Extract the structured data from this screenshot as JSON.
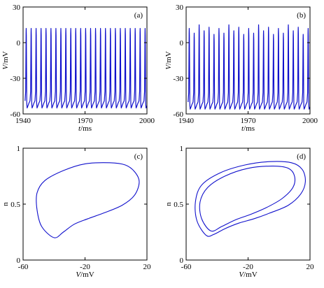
{
  "figure": {
    "line_color": "#1010cc",
    "axis_color": "#000000"
  },
  "chart_data": [
    {
      "panel_label": "(a)",
      "type": "line",
      "xlabel": "t/ms",
      "ylabel": "V/mV",
      "xlim": [
        1940,
        2000
      ],
      "ylim": [
        -60,
        30
      ],
      "xticks": [
        1940,
        1970,
        2000
      ],
      "yticks": [
        -60,
        -30,
        0,
        30
      ],
      "xtick_labels": [
        "1940",
        "1970",
        "2000"
      ],
      "ytick_labels": [
        "-60",
        "-30",
        "0",
        "30"
      ],
      "grid": false,
      "series": [
        {
          "spike_peak_mV": 12,
          "trough_mV": -55,
          "spike_count": 25,
          "first_spike_ms": 1941.5,
          "spike_period_ms": 2.4,
          "peak_pattern": [
            12
          ]
        }
      ]
    },
    {
      "panel_label": "(b)",
      "type": "line",
      "xlabel": "t/ms",
      "ylabel": "V/mV",
      "xlim": [
        1940,
        2000
      ],
      "ylim": [
        -60,
        30
      ],
      "xticks": [
        1940,
        1970,
        2000
      ],
      "yticks": [
        -60,
        -30,
        0,
        30
      ],
      "xtick_labels": [
        "1940",
        "1970",
        "2000"
      ],
      "ytick_labels": [
        "-60",
        "-30",
        "0",
        "30"
      ],
      "grid": false,
      "series": [
        {
          "spike_peak_mV": 13,
          "trough_mV": -56,
          "spike_count": 25,
          "first_spike_ms": 1941.5,
          "spike_period_ms": 2.4,
          "peak_pattern": [
            12,
            8,
            15,
            10,
            13,
            7
          ]
        }
      ]
    },
    {
      "panel_label": "(c)",
      "type": "line",
      "xlabel": "V/mV",
      "ylabel": "n",
      "xlim": [
        -60,
        20
      ],
      "ylim": [
        0,
        1
      ],
      "xticks": [
        -60,
        -20,
        20
      ],
      "yticks": [
        0,
        0.5,
        1
      ],
      "xtick_labels": [
        "-60",
        "-20",
        "20"
      ],
      "ytick_labels": [
        "0",
        "0.5",
        "1"
      ],
      "grid": false,
      "series": [
        {
          "loops": [
            [
              [
                -40,
                0.2
              ],
              [
                -48,
                0.3
              ],
              [
                -51,
                0.45
              ],
              [
                -51,
                0.6
              ],
              [
                -46,
                0.71
              ],
              [
                -34,
                0.8
              ],
              [
                -20,
                0.86
              ],
              [
                -4,
                0.87
              ],
              [
                6,
                0.85
              ],
              [
                12,
                0.79
              ],
              [
                15,
                0.7
              ],
              [
                12,
                0.58
              ],
              [
                4,
                0.49
              ],
              [
                -8,
                0.42
              ],
              [
                -18,
                0.37
              ],
              [
                -27,
                0.32
              ],
              [
                -34,
                0.25
              ],
              [
                -40,
                0.2
              ]
            ]
          ]
        }
      ]
    },
    {
      "panel_label": "(d)",
      "type": "line",
      "xlabel": "V/mV",
      "ylabel": "n",
      "xlim": [
        -60,
        20
      ],
      "ylim": [
        0,
        1
      ],
      "xticks": [
        -60,
        -20,
        20
      ],
      "yticks": [
        0,
        0.5,
        1
      ],
      "xtick_labels": [
        "-60",
        "-20",
        "20"
      ],
      "ytick_labels": [
        "0",
        "0.5",
        "1"
      ],
      "grid": false,
      "series": [
        {
          "loops": [
            [
              [
                -47,
                0.22
              ],
              [
                -53,
                0.35
              ],
              [
                -54,
                0.52
              ],
              [
                -50,
                0.67
              ],
              [
                -38,
                0.78
              ],
              [
                -22,
                0.85
              ],
              [
                -6,
                0.88
              ],
              [
                8,
                0.87
              ],
              [
                15,
                0.81
              ],
              [
                17,
                0.7
              ],
              [
                14,
                0.59
              ],
              [
                6,
                0.49
              ],
              [
                -6,
                0.42
              ],
              [
                -16,
                0.37
              ],
              [
                -26,
                0.33
              ],
              [
                -35,
                0.28
              ],
              [
                -42,
                0.23
              ],
              [
                -47,
                0.22
              ]
            ],
            [
              [
                -44,
                0.26
              ],
              [
                -50,
                0.37
              ],
              [
                -51,
                0.52
              ],
              [
                -46,
                0.65
              ],
              [
                -35,
                0.75
              ],
              [
                -20,
                0.82
              ],
              [
                -4,
                0.84
              ],
              [
                6,
                0.82
              ],
              [
                10,
                0.75
              ],
              [
                9,
                0.65
              ],
              [
                2,
                0.55
              ],
              [
                -8,
                0.47
              ],
              [
                -18,
                0.41
              ],
              [
                -28,
                0.36
              ],
              [
                -37,
                0.3
              ],
              [
                -44,
                0.26
              ]
            ]
          ]
        }
      ]
    }
  ]
}
